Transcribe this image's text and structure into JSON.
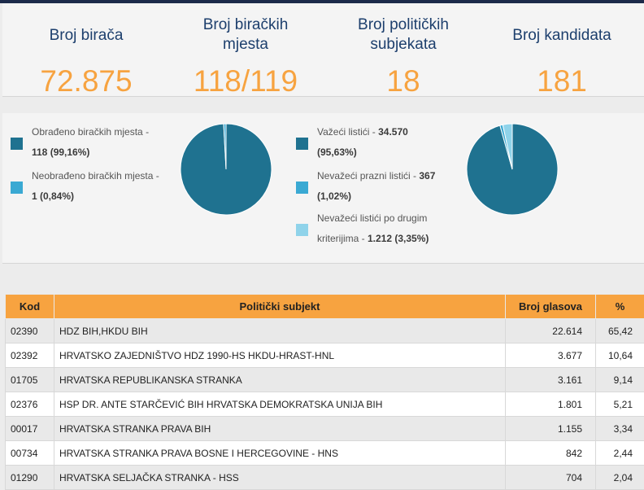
{
  "stats": [
    {
      "label_lines": [
        "Broj birača"
      ],
      "value": "72.875"
    },
    {
      "label_lines": [
        "Broj biračkih",
        "mjesta"
      ],
      "value": "118/119"
    },
    {
      "label_lines": [
        "Broj političkih",
        "subjekata"
      ],
      "value": "18"
    },
    {
      "label_lines": [
        "Broj kandidata"
      ],
      "value": "181"
    }
  ],
  "polling": {
    "legend": [
      {
        "line1": "Obrađeno biračkih mjesta -",
        "bold": "118 (99,16%)",
        "color": "#1f7290"
      },
      {
        "line1": "Neobrađeno biračkih mjesta -",
        "bold": "1 (0,84%)",
        "color": "#3aa9d3"
      }
    ],
    "slices": [
      99.16,
      0.84
    ]
  },
  "ballots": {
    "legend": [
      {
        "pre": "Važeći listići - ",
        "bold1": "34.570",
        "line2": "",
        "bold2": "(95,63%)",
        "color": "#1f7290"
      },
      {
        "pre": "Nevažeći prazni listići - ",
        "bold1": "367",
        "line2": "",
        "bold2": "(1,02%)",
        "color": "#3aa9d3"
      },
      {
        "pre": "Nevažeći listići po drugim",
        "bold1": "",
        "line2": "kriterijima - ",
        "bold2": "1.212 (3,35%)",
        "color": "#8fd3ea"
      }
    ],
    "slices": [
      95.63,
      1.02,
      3.35
    ]
  },
  "table": {
    "headers": [
      "Kod",
      "Politički subjekt",
      "Broj glasova",
      "%"
    ],
    "rows": [
      [
        "02390",
        "HDZ BIH,HKDU BIH",
        "22.614",
        "65,42"
      ],
      [
        "02392",
        "HRVATSKO ZAJEDNIŠTVO HDZ 1990-HS HKDU-HRAST-HNL",
        "3.677",
        "10,64"
      ],
      [
        "01705",
        "HRVATSKA REPUBLIKANSKA STRANKA",
        "3.161",
        "9,14"
      ],
      [
        "02376",
        "HSP DR. ANTE STARČEVIĆ BIH HRVATSKA DEMOKRATSKA UNIJA BIH",
        "1.801",
        "5,21"
      ],
      [
        "00017",
        "HRVATSKA STRANKA PRAVA BIH",
        "1.155",
        "3,34"
      ],
      [
        "00734",
        "HRVATSKA STRANKA PRAVA BOSNE I HERCEGOVINE - HNS",
        "842",
        "2,44"
      ],
      [
        "01290",
        "HRVATSKA SELJAČKA STRANKA - HSS",
        "704",
        "2,04"
      ]
    ]
  }
}
